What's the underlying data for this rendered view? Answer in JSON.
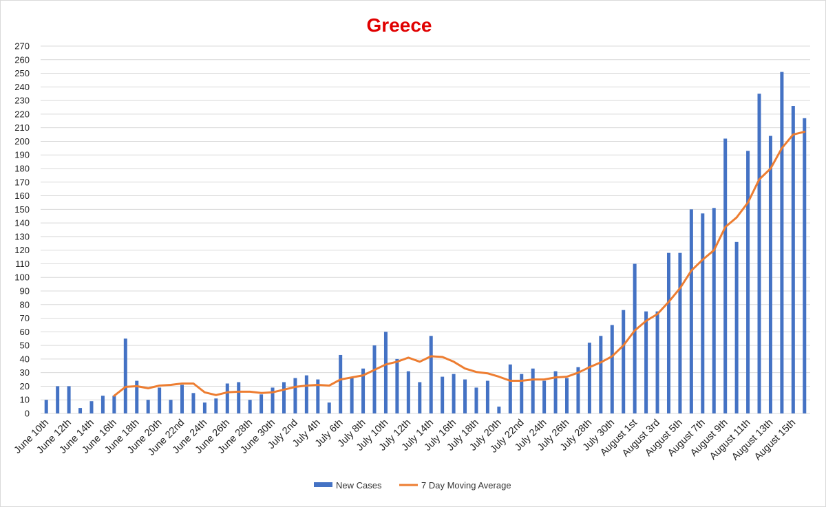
{
  "chart_data": {
    "type": "bar",
    "title": "Greece",
    "xlabel": "",
    "ylabel": "",
    "ylim": [
      0,
      270
    ],
    "ytick_step": 10,
    "grid": true,
    "legend_position": "bottom",
    "title_color": "#e00000",
    "categories": [
      "June 10th",
      "June 11th",
      "June 12th",
      "June 13th",
      "June 14th",
      "June 15th",
      "June 16th",
      "June 17th",
      "June 18th",
      "June 19th",
      "June 20th",
      "June 21st",
      "June 22nd",
      "June 23rd",
      "June 24th",
      "June 25th",
      "June 26th",
      "June 27th",
      "June 28th",
      "June 29th",
      "June 30th",
      "July 1st",
      "July 2nd",
      "July 3rd",
      "July 4th",
      "July 5th",
      "July 6th",
      "July 7th",
      "July 8th",
      "July 9th",
      "July 10th",
      "July 11th",
      "July 12th",
      "July 13th",
      "July 14th",
      "July 15th",
      "July 16th",
      "July 17th",
      "July 18th",
      "July 19th",
      "July 20th",
      "July 21st",
      "July 22nd",
      "July 23rd",
      "July 24th",
      "July 25th",
      "July 26th",
      "July 27th",
      "July 28th",
      "July 29th",
      "July 30th",
      "July 31st",
      "August 1st",
      "August 2nd",
      "August 3rd",
      "August 4th",
      "August 5th",
      "August 6th",
      "August 7th",
      "August 8th",
      "August 9th",
      "August 10th",
      "August 11th",
      "August 12th",
      "August 13th",
      "August 14th",
      "August 15th",
      "August 16th"
    ],
    "tick_labels": [
      "June 10th",
      "June 12th",
      "June 14th",
      "June 16th",
      "June 18th",
      "June 20th",
      "June 22nd",
      "June 24th",
      "June 26th",
      "June 28th",
      "June 30th",
      "July 2nd",
      "July 4th",
      "July 6th",
      "July 8th",
      "July 10th",
      "July 12th",
      "July 14th",
      "July 16th",
      "July 18th",
      "July 20th",
      "July 22nd",
      "July 24th",
      "July 26th",
      "July 28th",
      "July 30th",
      "August 1st",
      "August 3rd",
      "August 5th",
      "August 7th",
      "August 9th",
      "August 11th",
      "August 13th",
      "August 15th"
    ],
    "series": [
      {
        "name": "New Cases",
        "type": "bar",
        "color": "#4472c4",
        "values": [
          10,
          20,
          20,
          4,
          9,
          13,
          13,
          55,
          24,
          10,
          19,
          10,
          21,
          15,
          8,
          11,
          22,
          23,
          10,
          14,
          19,
          23,
          26,
          28,
          25,
          8,
          43,
          27,
          33,
          50,
          60,
          40,
          31,
          23,
          57,
          27,
          29,
          25,
          19,
          24,
          5,
          36,
          29,
          33,
          24,
          31,
          26,
          34,
          52,
          57,
          65,
          76,
          110,
          75,
          75,
          118,
          118,
          150,
          147,
          151,
          202,
          126,
          193,
          235,
          204,
          251,
          226,
          217
        ]
      },
      {
        "name": "7 Day Moving Average",
        "type": "line",
        "color": "#ed7d31",
        "values": [
          null,
          null,
          null,
          null,
          null,
          null,
          13,
          19.5,
          20,
          18.5,
          20.5,
          21,
          22,
          22,
          15.5,
          13.5,
          15.5,
          16,
          16,
          15,
          15.5,
          17.5,
          19.5,
          20.5,
          21,
          20.5,
          25,
          26.5,
          28,
          32,
          36,
          38,
          41,
          38,
          42,
          41.5,
          38,
          33,
          30.5,
          29.5,
          27,
          24,
          24,
          25,
          25,
          26.5,
          27,
          30,
          34,
          37.5,
          42,
          50,
          61,
          68,
          73,
          82,
          92,
          105,
          113,
          120,
          137,
          144,
          155,
          172,
          180,
          195,
          205,
          207
        ]
      }
    ]
  }
}
